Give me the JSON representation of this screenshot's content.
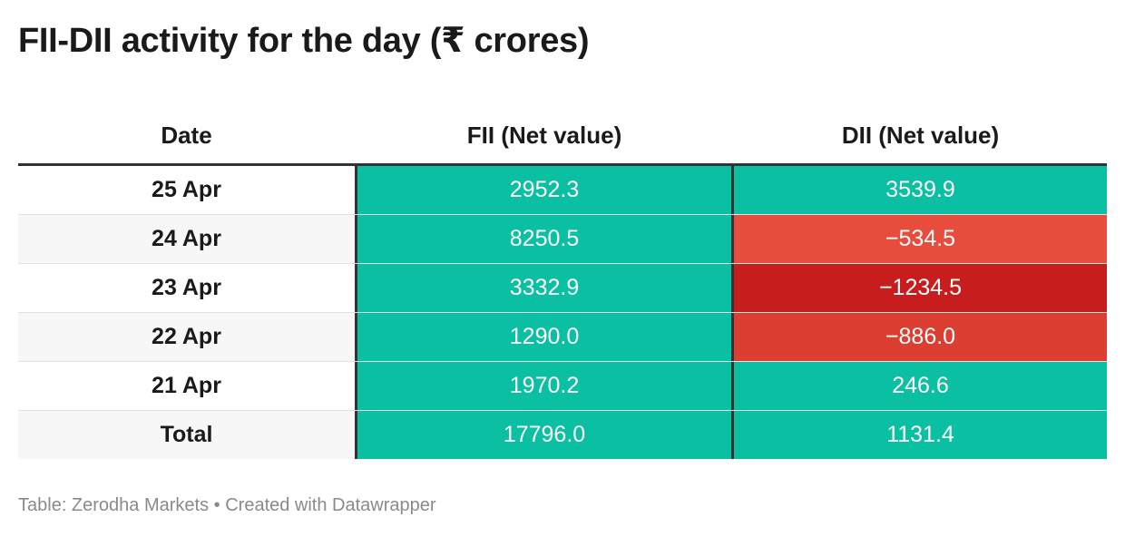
{
  "chart_data": {
    "type": "table",
    "title": "FII-DII activity for the day (₹ crores)",
    "columns": [
      "Date",
      "FII (Net value)",
      "DII (Net value)"
    ],
    "rows": [
      {
        "date": "25 Apr",
        "fii": "2952.3",
        "dii": "3539.9",
        "fii_value": 2952.3,
        "dii_value": 3539.9
      },
      {
        "date": "24 Apr",
        "fii": "8250.5",
        "dii": "−534.5",
        "fii_value": 8250.5,
        "dii_value": -534.5
      },
      {
        "date": "23 Apr",
        "fii": "3332.9",
        "dii": "−1234.5",
        "fii_value": 3332.9,
        "dii_value": -1234.5
      },
      {
        "date": "22 Apr",
        "fii": "1290.0",
        "dii": "−886.0",
        "fii_value": 1290.0,
        "dii_value": -886.0
      },
      {
        "date": "21 Apr",
        "fii": "1970.2",
        "dii": "246.6",
        "fii_value": 1970.2,
        "dii_value": 246.6
      },
      {
        "date": "Total",
        "fii": "17796.0",
        "dii": "1131.4",
        "fii_value": 17796.0,
        "dii_value": 1131.4
      }
    ],
    "footer": "Table: Zerodha Markets • Created with Datawrapper",
    "colors": {
      "positive": "#0abfa2",
      "negative_light": "#e84c3d",
      "negative_mid": "#dc3e31",
      "negative_dark": "#c81d1d",
      "row_alt": "#f7f7f7",
      "row_base": "#ffffff"
    }
  }
}
